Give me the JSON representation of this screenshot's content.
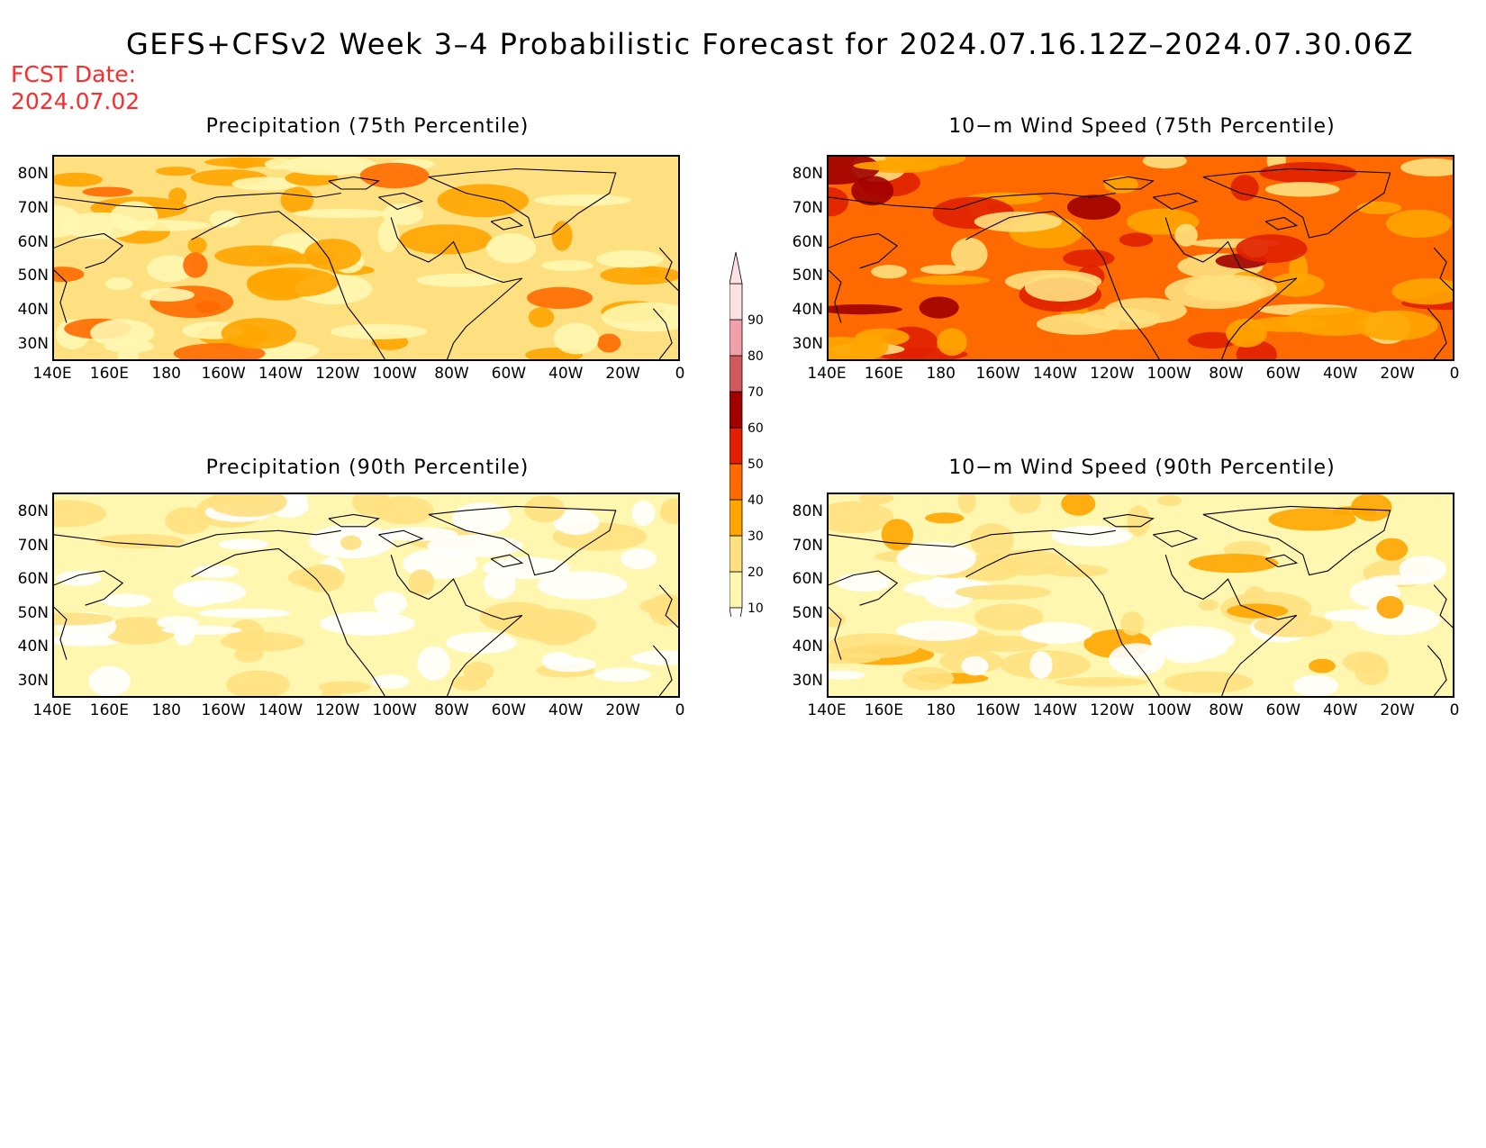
{
  "title": "GEFS+CFSv2 Week 3–4 Probabilistic Forecast for 2024.07.16.12Z–2024.07.30.06Z",
  "fcst_date_label": "FCST Date:",
  "fcst_date_value": "2024.07.02",
  "panels": [
    {
      "title": "Precipitation (75th Percentile)",
      "base_level": 20
    },
    {
      "title": "10−m Wind Speed (75th Percentile)",
      "base_level": 40
    },
    {
      "title": "Precipitation (90th Percentile)",
      "base_level": 10
    },
    {
      "title": "10−m Wind Speed (90th Percentile)",
      "base_level": 10
    }
  ],
  "lat_ticks": [
    "80N",
    "70N",
    "60N",
    "50N",
    "40N",
    "30N"
  ],
  "lon_ticks": [
    "140E",
    "160E",
    "180",
    "160W",
    "140W",
    "120W",
    "100W",
    "80W",
    "60W",
    "40W",
    "20W",
    "0"
  ],
  "colorbar": {
    "levels": [
      "10",
      "20",
      "30",
      "40",
      "50",
      "60",
      "70",
      "80",
      "90"
    ],
    "colors": [
      "#ffffff",
      "#fff7b0",
      "#ffe080",
      "#ffa500",
      "#ff6a00",
      "#e02000",
      "#a00000",
      "#d05a5a",
      "#f0a0a8",
      "#fde0e4"
    ]
  }
}
